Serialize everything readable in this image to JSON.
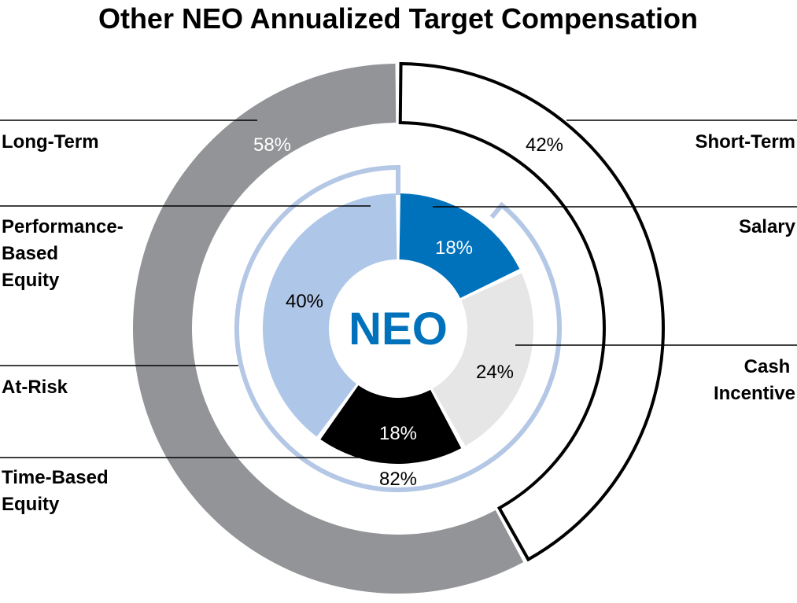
{
  "chart_data": {
    "type": "donut",
    "title": "Other NEO Annualized Target Compensation",
    "center_label": "NEO",
    "outer_ring": [
      {
        "name": "Short-Term",
        "value": 42,
        "label": "42%"
      },
      {
        "name": "Long-Term",
        "value": 58,
        "label": "58%"
      }
    ],
    "middle_arc": {
      "name": "At-Risk",
      "value": 82,
      "label": "82%"
    },
    "inner_ring": [
      {
        "name": "Salary",
        "value": 18,
        "label": "18%"
      },
      {
        "name": "Cash Incentive",
        "value": 24,
        "label": "24%"
      },
      {
        "name": "Time-Based Equity",
        "value": 18,
        "label": "18%"
      },
      {
        "name": "Performance-Based Equity",
        "value": 40,
        "label": "40%"
      }
    ],
    "side_labels": {
      "long_term": [
        "Long-Term"
      ],
      "performance": [
        "Performance-",
        "Based",
        "Equity"
      ],
      "at_risk": [
        "At-Risk"
      ],
      "time_based": [
        "Time-Based",
        "Equity"
      ],
      "short_term": [
        "Short-Term"
      ],
      "salary": [
        "Salary"
      ],
      "cash_incentive": [
        "Cash",
        "Incentive"
      ]
    },
    "colors": {
      "short_term_fill": "#ffffff",
      "short_term_stroke": "#000000",
      "long_term": "#929497",
      "at_risk_arc": "#b4c8e6",
      "salary": "#0072bc",
      "cash_incentive": "#e6e6e7",
      "time_based": "#000000",
      "performance": "#aec6e8",
      "center_text": "#0072bc",
      "leader_line": "#000000"
    }
  }
}
